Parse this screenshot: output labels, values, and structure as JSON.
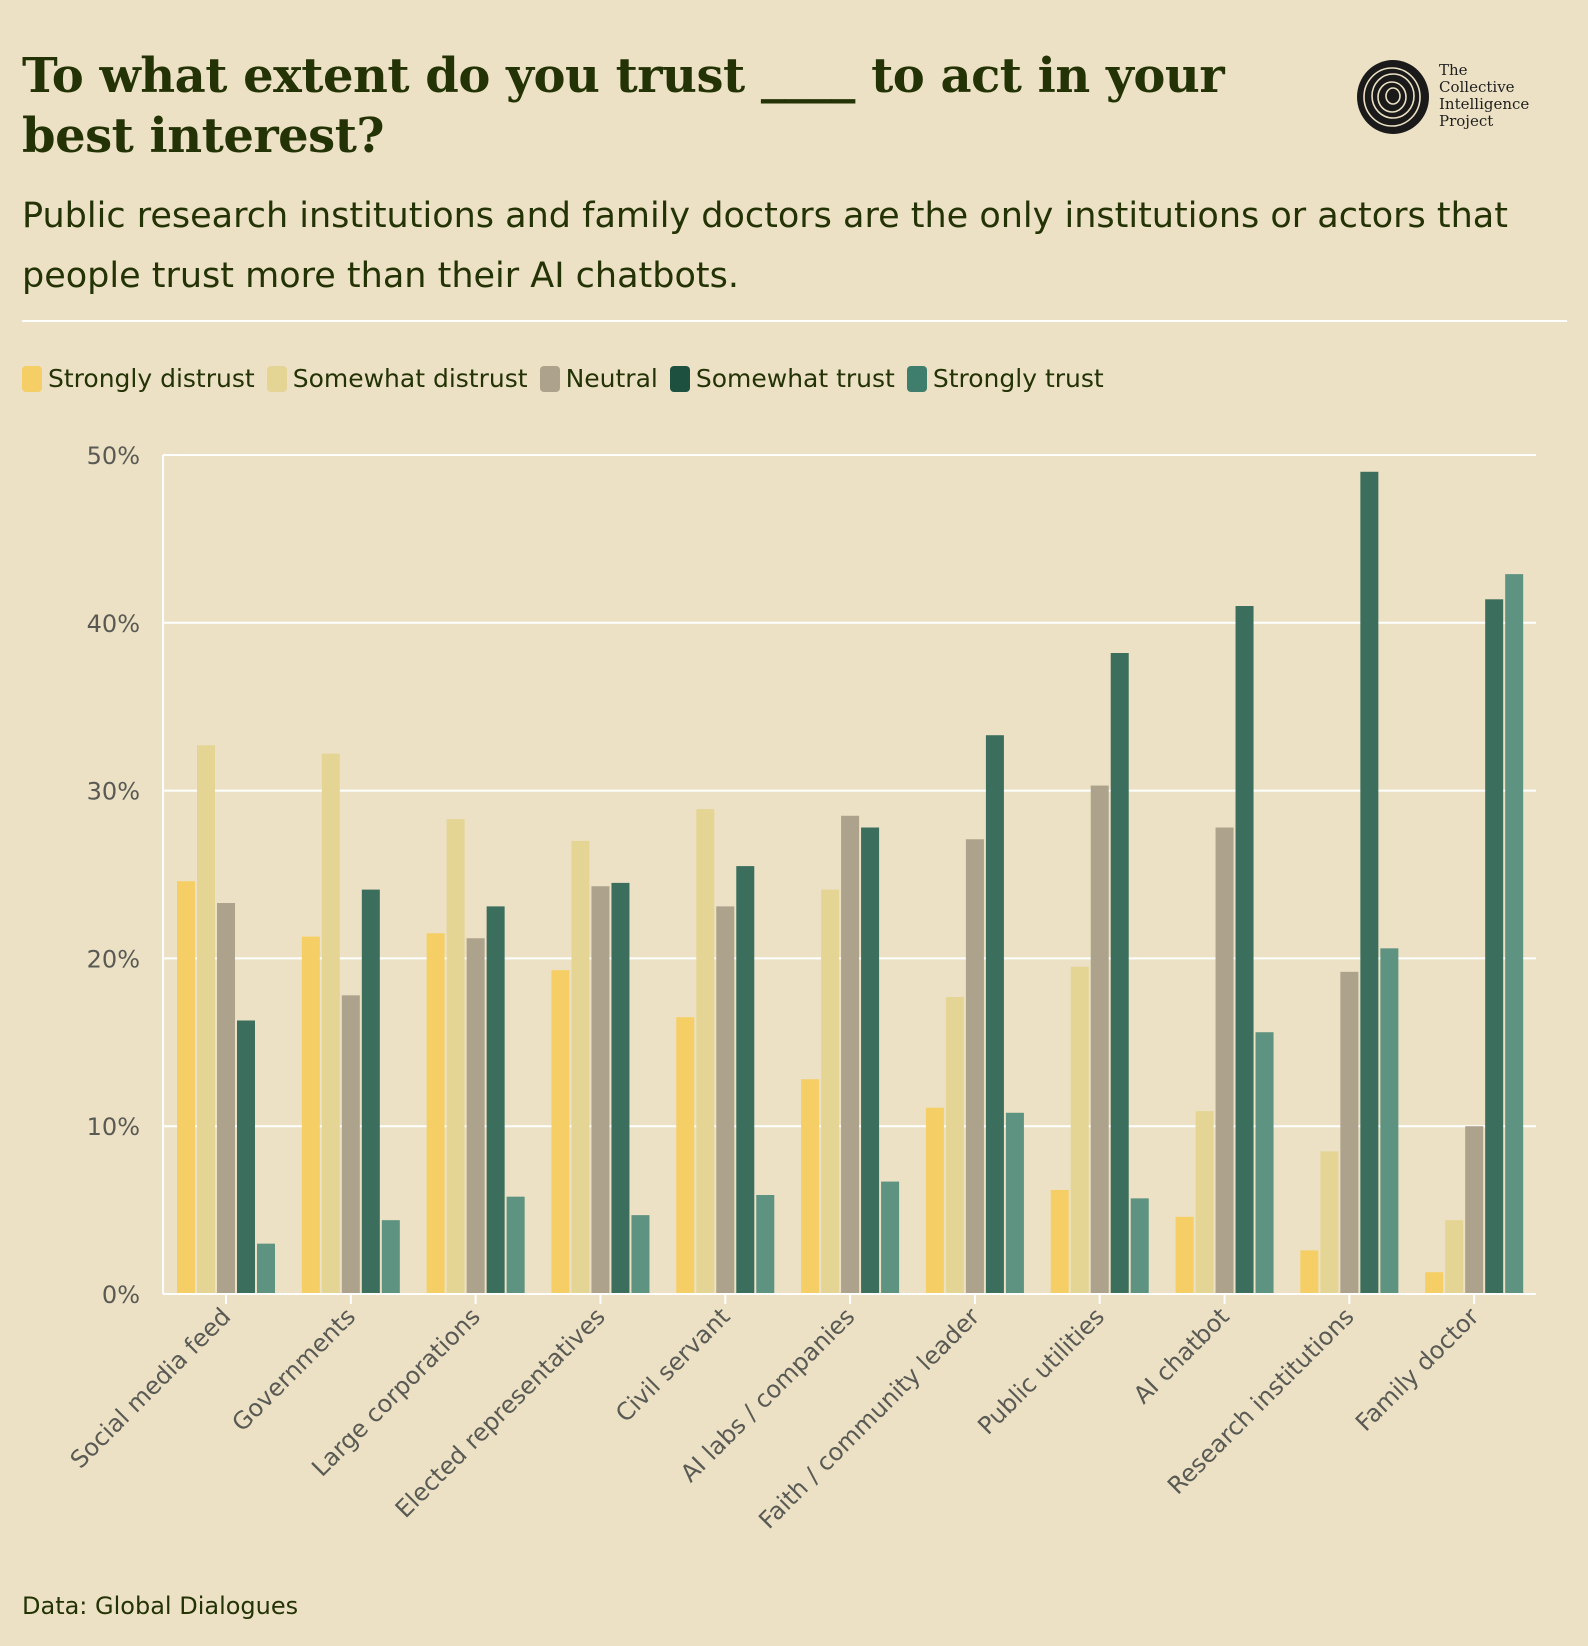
{
  "header": {
    "title": "To what extent do you trust ____ to act in your best interest?",
    "subtitle": "Public research institutions and family doctors are the only institutions or actors that people trust more than their AI chatbots."
  },
  "logo": {
    "lines": [
      "The",
      "Collective",
      "Intelligence",
      "Project"
    ]
  },
  "footer": {
    "source": "Data: Global Dialogues"
  },
  "colors": {
    "background": "#ece1c4",
    "text": "#243306",
    "grid": "#ffffff"
  },
  "chart_data": {
    "type": "bar",
    "categories": [
      "Social media feed",
      "Governments",
      "Large corporations",
      "Elected representatives",
      "Civil servant",
      "AI labs / companies",
      "Faith / community leader",
      "Public utilities",
      "AI chatbot",
      "Research institutions",
      "Family doctor"
    ],
    "series": [
      {
        "name": "Strongly distrust",
        "color": "#f5cf66",
        "values": [
          24.6,
          21.3,
          21.5,
          19.3,
          16.5,
          12.8,
          11.1,
          6.2,
          4.6,
          2.6,
          1.3
        ]
      },
      {
        "name": "Somewhat distrust",
        "color": "#e5d595",
        "values": [
          32.7,
          32.2,
          28.3,
          27.0,
          28.9,
          24.1,
          17.7,
          19.5,
          10.9,
          8.5,
          4.4
        ]
      },
      {
        "name": "Neutral",
        "color": "#ada28c",
        "values": [
          23.3,
          17.8,
          21.2,
          24.3,
          23.1,
          28.5,
          27.1,
          30.3,
          27.8,
          19.2,
          10.0
        ]
      },
      {
        "name": "Somewhat trust",
        "color": "#3b6e5d",
        "values": [
          16.3,
          24.1,
          23.1,
          24.5,
          25.5,
          27.8,
          33.3,
          38.2,
          41.0,
          49.0,
          41.4
        ]
      },
      {
        "name": "Strongly trust",
        "color": "#5e9281",
        "values": [
          3.0,
          4.4,
          5.8,
          4.7,
          5.9,
          6.7,
          10.8,
          5.7,
          15.6,
          20.6,
          42.9
        ]
      }
    ],
    "legend_swatch_colors": [
      "#f5cf66",
      "#e5d595",
      "#ada28c",
      "#1e5040",
      "#3f7e6c"
    ],
    "ylim": [
      0,
      50
    ],
    "yticks": [
      0,
      10,
      20,
      30,
      40,
      50
    ],
    "ytick_labels": [
      "0%",
      "10%",
      "20%",
      "30%",
      "40%",
      "50%"
    ],
    "grid": true,
    "legend_position": "top-left",
    "xlabel": "",
    "ylabel": ""
  }
}
